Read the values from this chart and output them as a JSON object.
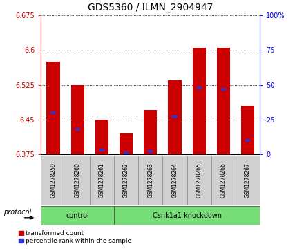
{
  "title": "GDS5360 / ILMN_2904947",
  "samples": [
    "GSM1278259",
    "GSM1278260",
    "GSM1278261",
    "GSM1278262",
    "GSM1278263",
    "GSM1278264",
    "GSM1278265",
    "GSM1278266",
    "GSM1278267"
  ],
  "red_values": [
    6.575,
    6.525,
    6.45,
    6.42,
    6.47,
    6.535,
    6.605,
    6.605,
    6.48
  ],
  "blue_pct": [
    30,
    18,
    3,
    1,
    2,
    27,
    48,
    47,
    10
  ],
  "ymin": 6.375,
  "ymax": 6.675,
  "yticks": [
    6.375,
    6.45,
    6.525,
    6.6,
    6.675
  ],
  "right_yticks": [
    0,
    25,
    50,
    75,
    100
  ],
  "bar_width": 0.55,
  "red_color": "#cc0000",
  "blue_color": "#3333cc",
  "label_bg": "#d0d0d0",
  "control_color": "#77dd77",
  "title_fontsize": 10,
  "tick_fontsize": 7,
  "sample_fontsize": 5.5,
  "proto_fontsize": 7,
  "legend_fontsize": 6.5
}
